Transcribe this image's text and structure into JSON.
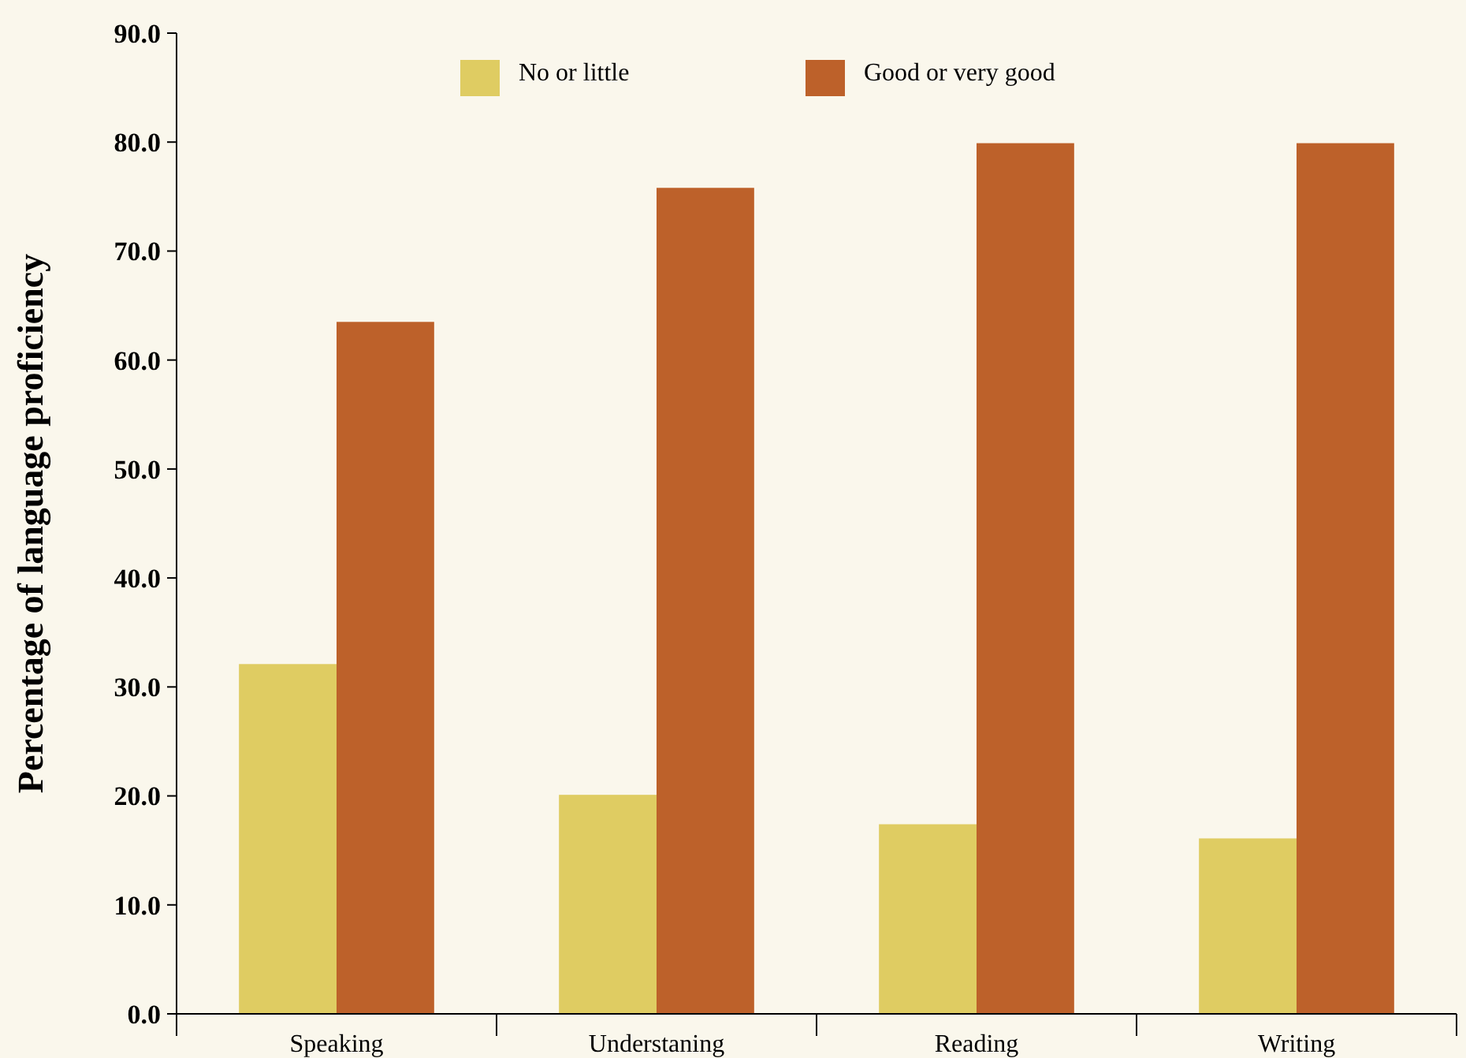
{
  "chart_data": {
    "type": "bar",
    "ylabel": "Percentage of language proficiency",
    "categories": [
      "Speaking",
      "Understaning",
      "Reading",
      "Writing"
    ],
    "series": [
      {
        "name": "No or little",
        "color": "#dfcc62",
        "values": [
          32.1,
          20.1,
          17.4,
          16.1
        ]
      },
      {
        "name": "Good or very good",
        "color": "#bd612a",
        "values": [
          63.5,
          75.8,
          79.9,
          79.9
        ]
      }
    ],
    "ylim": [
      0,
      90
    ],
    "yticks": [
      {
        "value": 0,
        "label": "0.0"
      },
      {
        "value": 10,
        "label": "10.0"
      },
      {
        "value": 20,
        "label": "20.0"
      },
      {
        "value": 30,
        "label": "30.0"
      },
      {
        "value": 40,
        "label": "40.0"
      },
      {
        "value": 50,
        "label": "50.0"
      },
      {
        "value": 60,
        "label": "60.0"
      },
      {
        "value": 70,
        "label": "70.0"
      },
      {
        "value": 80,
        "label": "80.0"
      },
      {
        "value": 90,
        "label": "90.0"
      }
    ],
    "grid": false,
    "legend": "top"
  }
}
